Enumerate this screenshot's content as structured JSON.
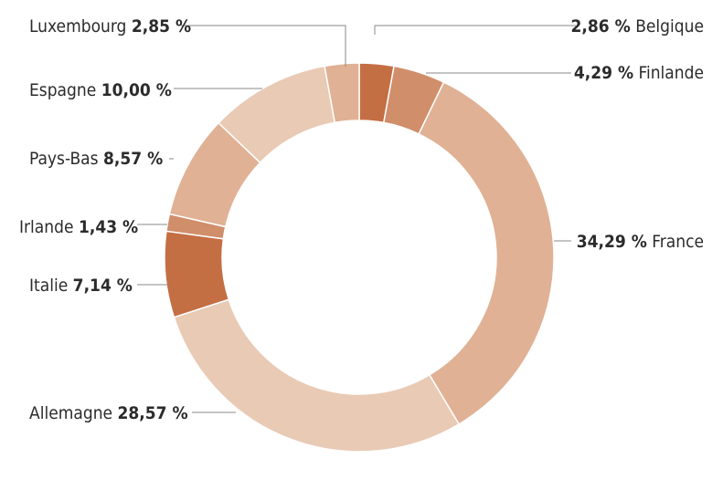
{
  "chart_data": {
    "type": "pie",
    "style": "donut",
    "legend": "none",
    "slices": [
      {
        "label": "Belgique",
        "value_text": "2,86 %",
        "value": 2.86,
        "color": "#c46e44"
      },
      {
        "label": "Finlande",
        "value_text": "4,29 %",
        "value": 4.29,
        "color": "#d08e6a"
      },
      {
        "label": "France",
        "value_text": "34,29 %",
        "value": 34.29,
        "color": "#e0b194"
      },
      {
        "label": "Allemagne",
        "value_text": "28,57 %",
        "value": 28.57,
        "color": "#e9cab5"
      },
      {
        "label": "Italie",
        "value_text": "7,14 %",
        "value": 7.14,
        "color": "#c46e44"
      },
      {
        "label": "Irlande",
        "value_text": "1,43 %",
        "value": 1.43,
        "color": "#d08e6a"
      },
      {
        "label": "Pays-Bas",
        "value_text": "8,57 %",
        "value": 8.57,
        "color": "#e0b194"
      },
      {
        "label": "Espagne",
        "value_text": "10,00 %",
        "value": 10.0,
        "color": "#e9cab5"
      },
      {
        "label": "Luxembourg",
        "value_text": "2,85 %",
        "value": 2.85,
        "color": "#e0b194"
      }
    ]
  }
}
